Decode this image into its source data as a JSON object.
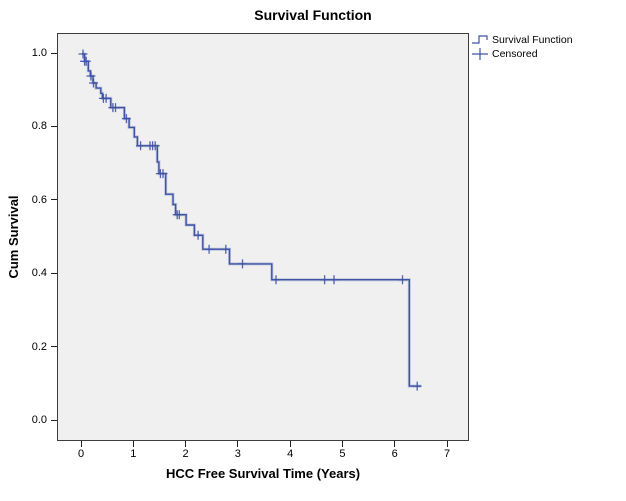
{
  "chart_data": {
    "type": "line",
    "subtype": "kaplan-meier-step",
    "title": "Survival Function",
    "xlabel": "HCC Free Survival Time (Years)",
    "ylabel": "Cum Survival",
    "xlim": [
      0,
      7
    ],
    "ylim": [
      0.0,
      1.0
    ],
    "grid": false,
    "legend_position": "top-right",
    "plot_background": "#f0f0f0",
    "frame_color": "#3c3c3c",
    "xticks": {
      "values": [
        0,
        1,
        2,
        3,
        4,
        5,
        6,
        7
      ],
      "labels": [
        "0",
        "1",
        "2",
        "3",
        "4",
        "5",
        "6",
        "7"
      ]
    },
    "yticks": {
      "values": [
        0.0,
        0.2,
        0.4,
        0.6,
        0.8,
        1.0
      ],
      "labels": [
        "0.0",
        "0.2",
        "0.4",
        "0.6",
        "0.8",
        "1.0"
      ]
    },
    "series": [
      {
        "name": "Survival Function",
        "color": "#3f53a6",
        "start": [
          0,
          1.0
        ],
        "events": [
          [
            0.05,
            0.98
          ],
          [
            0.12,
            0.954
          ],
          [
            0.16,
            0.94
          ],
          [
            0.21,
            0.921
          ],
          [
            0.27,
            0.907
          ],
          [
            0.36,
            0.893
          ],
          [
            0.39,
            0.879
          ],
          [
            0.55,
            0.854
          ],
          [
            0.81,
            0.824
          ],
          [
            0.9,
            0.8
          ],
          [
            1.0,
            0.774
          ],
          [
            1.06,
            0.75
          ],
          [
            1.44,
            0.706
          ],
          [
            1.47,
            0.674
          ],
          [
            1.6,
            0.618
          ],
          [
            1.74,
            0.59
          ],
          [
            1.79,
            0.562
          ],
          [
            1.99,
            0.534
          ],
          [
            2.15,
            0.506
          ],
          [
            2.31,
            0.468
          ],
          [
            2.82,
            0.428
          ],
          [
            3.63,
            0.385
          ],
          [
            6.26,
            0.095
          ]
        ],
        "end_time": 6.48
      }
    ],
    "censored": {
      "name": "Censored",
      "color": "#3f53a6",
      "points": [
        [
          0.02,
          1.0
        ],
        [
          0.05,
          0.98
        ],
        [
          0.08,
          0.98
        ],
        [
          0.17,
          0.94
        ],
        [
          0.22,
          0.921
        ],
        [
          0.41,
          0.879
        ],
        [
          0.46,
          0.879
        ],
        [
          0.59,
          0.854
        ],
        [
          0.64,
          0.854
        ],
        [
          0.85,
          0.824
        ],
        [
          1.12,
          0.75
        ],
        [
          1.3,
          0.75
        ],
        [
          1.35,
          0.75
        ],
        [
          1.4,
          0.75
        ],
        [
          1.5,
          0.674
        ],
        [
          1.55,
          0.674
        ],
        [
          1.82,
          0.562
        ],
        [
          1.86,
          0.562
        ],
        [
          2.22,
          0.506
        ],
        [
          2.43,
          0.468
        ],
        [
          2.75,
          0.468
        ],
        [
          3.07,
          0.428
        ],
        [
          3.71,
          0.385
        ],
        [
          4.64,
          0.385
        ],
        [
          4.82,
          0.385
        ],
        [
          6.13,
          0.385
        ],
        [
          6.41,
          0.095
        ]
      ]
    }
  },
  "legend": {
    "items": [
      {
        "label": "Survival Function",
        "symbol": "step-line"
      },
      {
        "label": "Censored",
        "symbol": "plus-cross"
      }
    ]
  }
}
